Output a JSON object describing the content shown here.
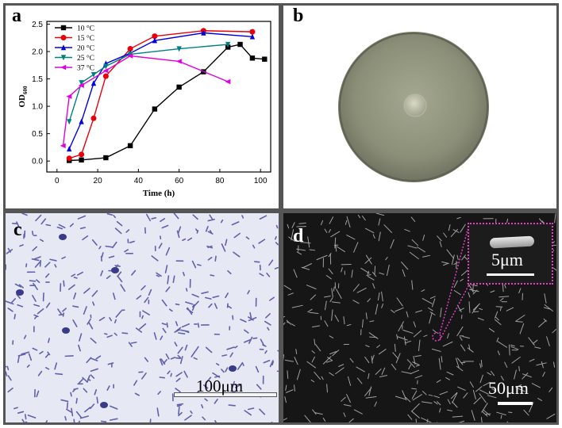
{
  "figure": {
    "panel_a": {
      "letter": "a"
    },
    "panel_b": {
      "letter": "b"
    },
    "panel_c": {
      "letter": "c",
      "scale_bar": "100μm"
    },
    "panel_d": {
      "letter": "d",
      "scale_bar": "50μm",
      "inset_scale_bar": "5μm"
    }
  },
  "chart_data": {
    "type": "line",
    "title": "",
    "xlabel": "Time (h)",
    "ylabel_main": "OD",
    "ylabel_sub": "600",
    "xlim": [
      -5,
      105
    ],
    "ylim": [
      -0.2,
      2.55
    ],
    "xticks": [
      0,
      20,
      40,
      60,
      80,
      100
    ],
    "yticks": [
      0.0,
      0.5,
      1.0,
      1.5,
      2.0,
      2.5
    ],
    "legend_position": "top-left",
    "series": [
      {
        "name": "10 °C",
        "color": "#000000",
        "marker": "square",
        "x": [
          6,
          12,
          24,
          36,
          48,
          60,
          72,
          84,
          90,
          96,
          102
        ],
        "y": [
          0.01,
          0.02,
          0.06,
          0.28,
          0.95,
          1.35,
          1.63,
          2.08,
          2.13,
          1.88,
          1.86
        ]
      },
      {
        "name": "15 °C",
        "color": "#e8000b",
        "marker": "circle",
        "x": [
          6,
          12,
          18,
          24,
          36,
          48,
          72,
          96
        ],
        "y": [
          0.05,
          0.12,
          0.78,
          1.55,
          2.05,
          2.28,
          2.38,
          2.36
        ]
      },
      {
        "name": "20 °C",
        "color": "#0000dd",
        "marker": "triangle-up",
        "x": [
          6,
          12,
          18,
          24,
          36,
          48,
          72,
          96
        ],
        "y": [
          0.22,
          0.72,
          1.42,
          1.78,
          1.97,
          2.2,
          2.34,
          2.27
        ]
      },
      {
        "name": "25 °C",
        "color": "#008080",
        "marker": "triangle-down",
        "x": [
          6,
          12,
          18,
          24,
          36,
          60,
          84
        ],
        "y": [
          0.72,
          1.43,
          1.58,
          1.73,
          1.95,
          2.05,
          2.13
        ]
      },
      {
        "name": "37 °C",
        "color": "#e000e0",
        "marker": "triangle-left",
        "x": [
          3,
          6,
          12,
          24,
          36,
          60,
          84
        ],
        "y": [
          0.28,
          1.18,
          1.38,
          1.65,
          1.92,
          1.82,
          1.45
        ]
      }
    ]
  }
}
